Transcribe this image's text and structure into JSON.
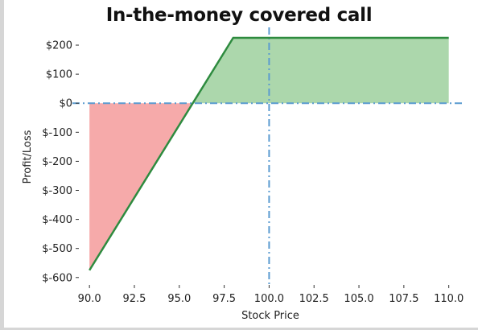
{
  "chart_data": {
    "type": "line",
    "title": "In-the-money covered call",
    "xlabel": "Stock Price",
    "ylabel": "Profit/Loss",
    "xlim": [
      89.5,
      111
    ],
    "ylim": [
      -620,
      250
    ],
    "x_ticks": [
      "90.0",
      "92.5",
      "95.0",
      "97.5",
      "100.0",
      "102.5",
      "105.0",
      "107.5",
      "110.0"
    ],
    "y_ticks": [
      "$200",
      "$100",
      "$0",
      "$-100",
      "$-200",
      "$-300",
      "$-400",
      "$-500",
      "$-600"
    ],
    "series": [
      {
        "x": [
          90,
          98,
          110
        ],
        "y": [
          -575,
          225,
          225
        ]
      }
    ],
    "fill_profit_color": "#acd7ac",
    "fill_loss_color": "#f6aaaa",
    "line_color": "#2e8b3f",
    "reference_line_color": "#5a9bd0",
    "reference_lines": {
      "x": 100,
      "y": 0
    },
    "grid": false,
    "legend": "none"
  }
}
